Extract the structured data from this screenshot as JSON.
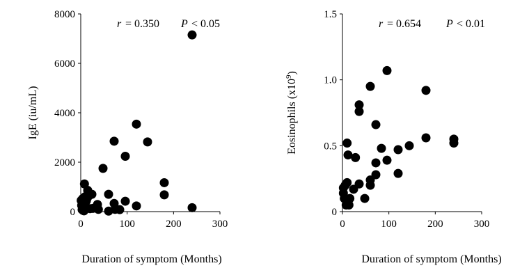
{
  "chart_data": [
    {
      "type": "scatter",
      "title": "",
      "xlabel": "Duration of symptom (Months)",
      "ylabel": "IgE (iu/mL)",
      "xlim": [
        0,
        300
      ],
      "ylim": [
        0,
        8000
      ],
      "xticks": [
        "0",
        "100",
        "200",
        "300"
      ],
      "yticks": [
        "0",
        "2000",
        "4000",
        "6000",
        "8000"
      ],
      "annotation": {
        "r_label": "r",
        "r_value": "= 0.350",
        "p_label": "P",
        "p_value": "< 0.05"
      },
      "grid": false,
      "points": [
        {
          "x": 1,
          "y": 450
        },
        {
          "x": 2,
          "y": 250
        },
        {
          "x": 3,
          "y": 80
        },
        {
          "x": 4,
          "y": 520
        },
        {
          "x": 5,
          "y": 120
        },
        {
          "x": 6,
          "y": 350
        },
        {
          "x": 7,
          "y": 30
        },
        {
          "x": 8,
          "y": 1120
        },
        {
          "x": 9,
          "y": 600
        },
        {
          "x": 10,
          "y": 200
        },
        {
          "x": 12,
          "y": 430
        },
        {
          "x": 14,
          "y": 550
        },
        {
          "x": 15,
          "y": 860
        },
        {
          "x": 18,
          "y": 650
        },
        {
          "x": 20,
          "y": 120
        },
        {
          "x": 24,
          "y": 700
        },
        {
          "x": 26,
          "y": 130
        },
        {
          "x": 36,
          "y": 290
        },
        {
          "x": 38,
          "y": 90
        },
        {
          "x": 48,
          "y": 1750
        },
        {
          "x": 60,
          "y": 700
        },
        {
          "x": 60,
          "y": 20
        },
        {
          "x": 72,
          "y": 2850
        },
        {
          "x": 72,
          "y": 330
        },
        {
          "x": 74,
          "y": 90
        },
        {
          "x": 84,
          "y": 80
        },
        {
          "x": 96,
          "y": 2240
        },
        {
          "x": 96,
          "y": 420
        },
        {
          "x": 120,
          "y": 3540
        },
        {
          "x": 120,
          "y": 230
        },
        {
          "x": 144,
          "y": 2820
        },
        {
          "x": 180,
          "y": 1170
        },
        {
          "x": 180,
          "y": 680
        },
        {
          "x": 240,
          "y": 7150
        },
        {
          "x": 240,
          "y": 160
        }
      ]
    },
    {
      "type": "scatter",
      "title": "",
      "xlabel": "Duration of symptom (Months)",
      "ylabel": "Eosinophils (x10",
      "ylabel_sup": "9",
      "ylabel_close": ")",
      "xlim": [
        0,
        300
      ],
      "ylim": [
        0,
        1.5
      ],
      "xticks": [
        "0",
        "100",
        "200",
        "300"
      ],
      "yticks": [
        "0",
        "0.5",
        "1.0",
        "1.5"
      ],
      "annotation": {
        "r_label": "r",
        "r_value": "= 0.654",
        "p_label": "P",
        "p_value": "< 0.01"
      },
      "grid": false,
      "points": [
        {
          "x": 2,
          "y": 0.18
        },
        {
          "x": 2,
          "y": 0.14
        },
        {
          "x": 4,
          "y": 0.1
        },
        {
          "x": 6,
          "y": 0.2
        },
        {
          "x": 8,
          "y": 0.05
        },
        {
          "x": 10,
          "y": 0.52
        },
        {
          "x": 10,
          "y": 0.22
        },
        {
          "x": 12,
          "y": 0.43
        },
        {
          "x": 14,
          "y": 0.05
        },
        {
          "x": 16,
          "y": 0.1
        },
        {
          "x": 24,
          "y": 0.17
        },
        {
          "x": 28,
          "y": 0.41
        },
        {
          "x": 36,
          "y": 0.81
        },
        {
          "x": 36,
          "y": 0.76
        },
        {
          "x": 36,
          "y": 0.21
        },
        {
          "x": 48,
          "y": 0.1
        },
        {
          "x": 60,
          "y": 0.95
        },
        {
          "x": 60,
          "y": 0.24
        },
        {
          "x": 60,
          "y": 0.2
        },
        {
          "x": 72,
          "y": 0.66
        },
        {
          "x": 72,
          "y": 0.37
        },
        {
          "x": 72,
          "y": 0.28
        },
        {
          "x": 84,
          "y": 0.48
        },
        {
          "x": 96,
          "y": 1.07
        },
        {
          "x": 96,
          "y": 0.39
        },
        {
          "x": 120,
          "y": 0.47
        },
        {
          "x": 120,
          "y": 0.29
        },
        {
          "x": 144,
          "y": 0.5
        },
        {
          "x": 180,
          "y": 0.92
        },
        {
          "x": 180,
          "y": 0.56
        },
        {
          "x": 240,
          "y": 0.55
        },
        {
          "x": 240,
          "y": 0.52
        }
      ]
    }
  ]
}
